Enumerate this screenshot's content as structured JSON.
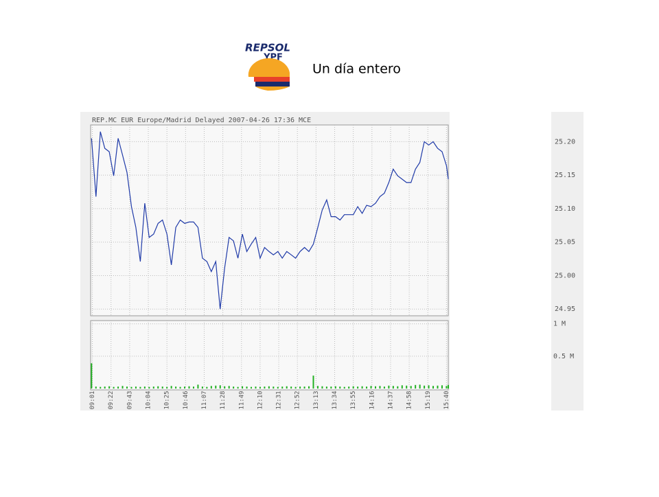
{
  "slide": {
    "title": "Un día entero",
    "logo": [
      "REPSOL",
      "YPF"
    ]
  },
  "chart_data": {
    "type": "line",
    "title": "REP.MC EUR Europe/Madrid Delayed 2007-04-26 17:36 MCE",
    "x": [
      "09:00",
      "09:05",
      "09:10",
      "09:15",
      "09:20",
      "09:25",
      "09:30",
      "09:35",
      "09:40",
      "09:45",
      "09:50",
      "09:55",
      "10:00",
      "10:05",
      "10:10",
      "10:15",
      "10:20",
      "10:25",
      "10:30",
      "10:35",
      "10:40",
      "10:45",
      "10:50",
      "10:55",
      "11:00",
      "11:05",
      "11:10",
      "11:15",
      "11:20",
      "11:25",
      "11:30",
      "11:35",
      "11:40",
      "11:45",
      "11:50",
      "11:55",
      "12:00",
      "12:05",
      "12:10",
      "12:15",
      "12:20",
      "12:25",
      "12:30",
      "12:35",
      "12:40",
      "12:45",
      "12:50",
      "12:55",
      "13:00",
      "13:05",
      "13:10",
      "13:15",
      "13:20",
      "13:25",
      "13:30",
      "13:35",
      "13:40",
      "13:45",
      "13:50",
      "13:55",
      "14:00",
      "14:05",
      "14:10",
      "14:15",
      "14:20",
      "14:25",
      "14:30",
      "14:35",
      "14:40",
      "14:45",
      "14:50",
      "14:55",
      "15:00",
      "15:05",
      "15:10",
      "15:15",
      "15:20",
      "15:25",
      "15:30",
      "15:35",
      "15:40",
      "15:42"
    ],
    "xlim": [
      "08:59",
      "15:42"
    ],
    "xticks": [
      "09:01",
      "09:22",
      "09:43",
      "10:04",
      "10:25",
      "10:46",
      "11:07",
      "11:28",
      "11:49",
      "12:10",
      "12:31",
      "12:52",
      "13:13",
      "13:34",
      "13:55",
      "14:16",
      "14:37",
      "14:58",
      "15:19",
      "15:40"
    ],
    "ylim": [
      24.94,
      25.225
    ],
    "yticks": [
      24.95,
      {
        "value": 25.0,
        "label": "25.00"
      },
      25.05,
      {
        "value": 25.1,
        "label": "25.10"
      },
      25.15,
      {
        "value": 25.2,
        "label": "25.20"
      }
    ],
    "y2lim": [
      0,
      1050000
    ],
    "y2ticks": [
      {
        "value": 500000,
        "label": "0.5 M"
      },
      {
        "value": 1000000,
        "label": "1 M"
      }
    ],
    "grid": true,
    "series": [
      {
        "color": "#1f3aa8",
        "values": [
          25.205,
          25.118,
          25.215,
          25.19,
          25.185,
          25.149,
          25.205,
          25.18,
          25.154,
          25.103,
          25.072,
          25.021,
          25.108,
          25.057,
          25.062,
          25.078,
          25.083,
          25.062,
          25.016,
          25.072,
          25.083,
          25.078,
          25.08,
          25.08,
          25.072,
          25.026,
          25.021,
          25.006,
          25.021,
          24.95,
          25.011,
          25.057,
          25.052,
          25.026,
          25.062,
          25.036,
          25.047,
          25.057,
          25.026,
          25.042,
          25.036,
          25.031,
          25.036,
          25.026,
          25.036,
          25.031,
          25.026,
          25.036,
          25.042,
          25.036,
          25.047,
          25.072,
          25.098,
          25.113,
          25.088,
          25.088,
          25.083,
          25.091,
          25.091,
          25.091,
          25.103,
          25.093,
          25.105,
          25.103,
          25.108,
          25.118,
          25.123,
          25.139,
          25.159,
          25.149,
          25.144,
          25.139,
          25.139,
          25.159,
          25.169,
          25.2,
          25.195,
          25.2,
          25.19,
          25.185,
          25.164,
          25.144
        ]
      },
      {
        "type": "bar",
        "axis": "y2",
        "color": "#22b022",
        "values": [
          390000,
          30000,
          25000,
          30000,
          35000,
          25000,
          30000,
          40000,
          30000,
          25000,
          30000,
          25000,
          30000,
          25000,
          30000,
          35000,
          30000,
          25000,
          40000,
          30000,
          25000,
          30000,
          35000,
          30000,
          60000,
          30000,
          25000,
          40000,
          45000,
          50000,
          35000,
          40000,
          30000,
          25000,
          35000,
          30000,
          25000,
          30000,
          25000,
          30000,
          35000,
          30000,
          25000,
          30000,
          35000,
          30000,
          25000,
          30000,
          30000,
          35000,
          200000,
          40000,
          35000,
          30000,
          30000,
          35000,
          30000,
          25000,
          30000,
          35000,
          30000,
          35000,
          30000,
          40000,
          35000,
          40000,
          30000,
          45000,
          40000,
          35000,
          50000,
          45000,
          40000,
          55000,
          60000,
          45000,
          50000,
          40000,
          45000,
          50000,
          40000,
          55000
        ]
      }
    ]
  }
}
